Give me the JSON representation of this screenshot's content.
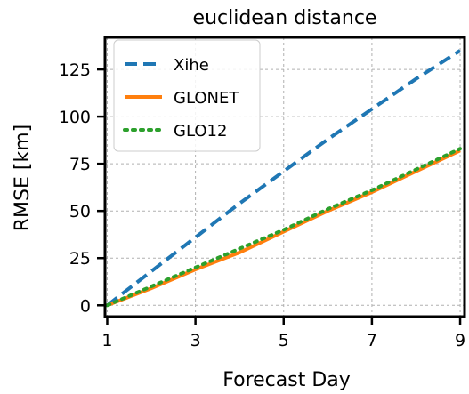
{
  "chart_data": {
    "type": "line",
    "title": "euclidean distance",
    "xlabel": "Forecast Day",
    "ylabel": "RMSE [km]",
    "xlim": [
      0.95,
      9.1
    ],
    "ylim": [
      -6,
      142
    ],
    "xticks": [
      1,
      3,
      5,
      7,
      9
    ],
    "yticks": [
      0,
      25,
      50,
      75,
      100,
      125
    ],
    "grid": true,
    "legend_position": "top-left",
    "x": [
      1,
      2,
      3,
      4,
      5,
      6,
      7,
      8,
      9
    ],
    "series": [
      {
        "name": "Xihe",
        "color": "#1f77b4",
        "style": "dashed",
        "values": [
          0,
          18,
          36,
          54,
          71,
          88,
          104,
          120,
          135
        ]
      },
      {
        "name": "GLONET",
        "color": "#ff7f0e",
        "style": "solid",
        "values": [
          0,
          9,
          19,
          28,
          39,
          50,
          60,
          71,
          82
        ]
      },
      {
        "name": "GLO12",
        "color": "#2ca02c",
        "style": "dotted",
        "values": [
          0,
          10,
          20,
          30,
          40,
          51,
          61,
          72,
          83
        ]
      }
    ]
  }
}
